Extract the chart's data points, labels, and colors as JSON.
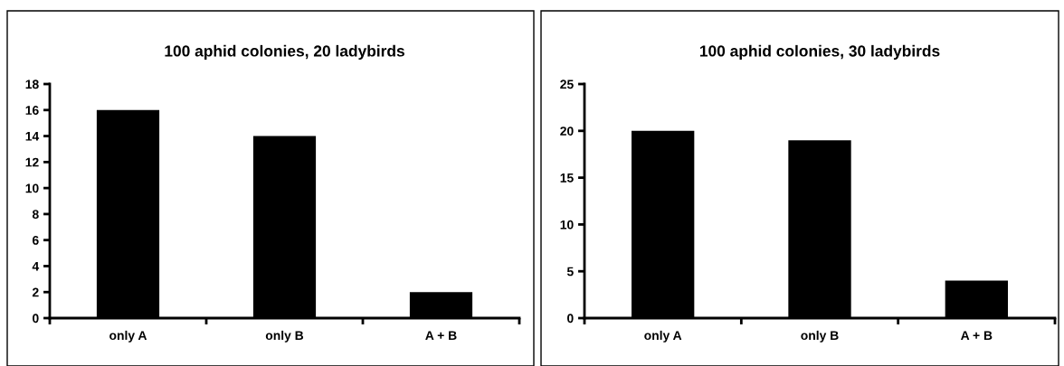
{
  "chart_data": [
    {
      "type": "bar",
      "title": "100 aphid colonies, 20 ladybirds",
      "categories": [
        "only A",
        "only B",
        "A + B"
      ],
      "values": [
        16,
        14,
        2
      ],
      "color": "#000000",
      "ylim": [
        0,
        18
      ],
      "yticks": [
        0,
        2,
        4,
        6,
        8,
        10,
        12,
        14,
        16,
        18
      ],
      "grid": false
    },
    {
      "type": "bar",
      "title": "100 aphid colonies, 30 ladybirds",
      "categories": [
        "only A",
        "only B",
        "A + B"
      ],
      "values": [
        20,
        19,
        4
      ],
      "color": "#000000",
      "ylim": [
        0,
        25
      ],
      "yticks": [
        0,
        5,
        10,
        15,
        20,
        25
      ],
      "grid": false
    }
  ]
}
